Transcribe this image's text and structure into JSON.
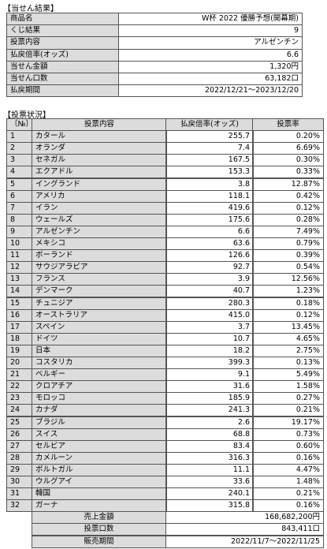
{
  "result": {
    "title": "【当せん結果】",
    "rows": [
      [
        "商品名",
        "W杯 2022 優勝予想(開幕期)"
      ],
      [
        "くじ結果",
        "9"
      ],
      [
        "投票内容",
        "アルゼンチン"
      ],
      [
        "払戻倍率(オッズ)",
        "6.6"
      ],
      [
        "当せん金額",
        "1,320円"
      ],
      [
        "当せん口数",
        "63,182口"
      ],
      [
        "払戻期間",
        "2022/12/21～2023/12/20"
      ]
    ]
  },
  "votes": {
    "title": "【投票状況】",
    "header": [
      "〔№〕",
      "投票内容",
      "払戻倍率(オッズ)",
      "投票率"
    ],
    "rows": [
      [
        "1",
        "カタール",
        "255.7",
        "0.20%"
      ],
      [
        "2",
        "オランダ",
        "7.4",
        "6.69%"
      ],
      [
        "3",
        "セネガル",
        "167.5",
        "0.30%"
      ],
      [
        "4",
        "エクアドル",
        "153.3",
        "0.33%"
      ],
      [
        "5",
        "イングランド",
        "3.8",
        "12.87%"
      ],
      [
        "6",
        "アメリカ",
        "118.1",
        "0.42%"
      ],
      [
        "7",
        "イラン",
        "419.6",
        "0.12%"
      ],
      [
        "8",
        "ウェールズ",
        "175.6",
        "0.28%"
      ],
      [
        "9",
        "アルゼンチン",
        "6.6",
        "7.49%"
      ],
      [
        "10",
        "メキシコ",
        "63.6",
        "0.79%"
      ],
      [
        "11",
        "ポーランド",
        "126.6",
        "0.39%"
      ],
      [
        "12",
        "サウジアラビア",
        "92.7",
        "0.54%"
      ],
      [
        "13",
        "フランス",
        "3.9",
        "12.56%"
      ],
      [
        "14",
        "デンマーク",
        "40.7",
        "1.23%"
      ],
      [
        "15",
        "チュニジア",
        "280.3",
        "0.18%"
      ],
      [
        "16",
        "オーストラリア",
        "415.0",
        "0.12%"
      ],
      [
        "17",
        "スペイン",
        "3.7",
        "13.45%"
      ],
      [
        "18",
        "ドイツ",
        "10.7",
        "4.65%"
      ],
      [
        "19",
        "日本",
        "18.2",
        "2.75%"
      ],
      [
        "20",
        "コスタリカ",
        "399.3",
        "0.13%"
      ],
      [
        "21",
        "ベルギー",
        "9.1",
        "5.49%"
      ],
      [
        "22",
        "クロアチア",
        "31.6",
        "1.58%"
      ],
      [
        "23",
        "モロッコ",
        "185.9",
        "0.27%"
      ],
      [
        "24",
        "カナダ",
        "241.3",
        "0.21%"
      ],
      [
        "25",
        "ブラジル",
        "2.6",
        "19.17%"
      ],
      [
        "26",
        "スイス",
        "68.8",
        "0.73%"
      ],
      [
        "27",
        "セルビア",
        "83.4",
        "0.60%"
      ],
      [
        "28",
        "カメルーン",
        "316.3",
        "0.16%"
      ],
      [
        "29",
        "ポルトガル",
        "11.1",
        "4.47%"
      ],
      [
        "30",
        "ウルグアイ",
        "33.6",
        "1.48%"
      ],
      [
        "31",
        "韓国",
        "240.1",
        "0.21%"
      ],
      [
        "32",
        "ガーナ",
        "315.8",
        "0.16%"
      ]
    ],
    "footer": [
      [
        "売上金額",
        "168,682,200円"
      ],
      [
        "投票口数",
        "843,411口"
      ],
      [
        "販売期間",
        "2022/11/7～2022/11/25"
      ]
    ]
  }
}
